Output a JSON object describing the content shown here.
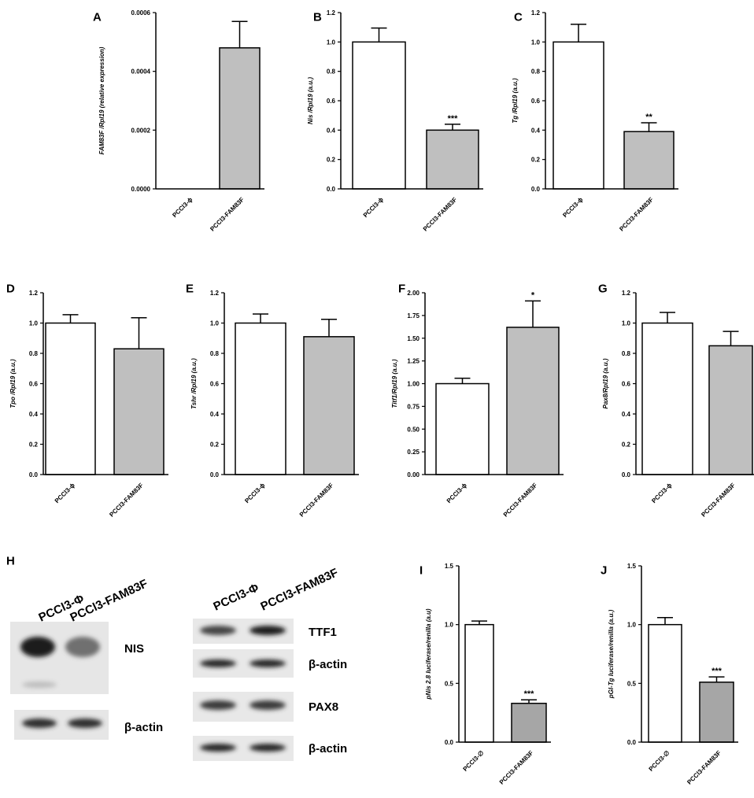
{
  "chart_data": [
    {
      "panel": "A",
      "type": "bar",
      "categories": [
        "PCCl3-ϕ",
        "PCCl3-FAM83F"
      ],
      "values": [
        0.0,
        0.00048
      ],
      "errors": [
        0.0,
        9e-05
      ],
      "significance": [
        "",
        ""
      ],
      "ylabel": "FAM83F /Rpl19 (relative expression)",
      "ylim": [
        0,
        0.0006
      ],
      "yticks": [
        0,
        0.0002,
        0.0004,
        0.0006
      ],
      "ytick_labels": [
        "0.0000",
        "0.0002",
        "0.0004",
        "0.0006"
      ],
      "colors": [
        "#ffffff",
        "#bfbfbf"
      ]
    },
    {
      "panel": "B",
      "type": "bar",
      "categories": [
        "PCCl3-ϕ",
        "PCCl3-FAM83F"
      ],
      "values": [
        1.0,
        0.4
      ],
      "errors": [
        0.095,
        0.04
      ],
      "significance": [
        "",
        "***"
      ],
      "ylabel": "Nis /Rpl19 (a.u.)",
      "ylim": [
        0,
        1.2
      ],
      "yticks": [
        0,
        0.2,
        0.4,
        0.6,
        0.8,
        1.0,
        1.2
      ],
      "ytick_labels": [
        "0.0",
        "0.2",
        "0.4",
        "0.6",
        "0.8",
        "1.0",
        "1.2"
      ],
      "colors": [
        "#ffffff",
        "#bfbfbf"
      ]
    },
    {
      "panel": "C",
      "type": "bar",
      "categories": [
        "PCCl3-ϕ",
        "PCCl3-FAM83F"
      ],
      "values": [
        1.0,
        0.39
      ],
      "errors": [
        0.12,
        0.06
      ],
      "significance": [
        "",
        "**"
      ],
      "ylabel": "Tg /Rpl19 (a.u.)",
      "ylim": [
        0,
        1.2
      ],
      "yticks": [
        0,
        0.2,
        0.4,
        0.6,
        0.8,
        1.0,
        1.2
      ],
      "ytick_labels": [
        "0.0",
        "0.2",
        "0.4",
        "0.6",
        "0.8",
        "1.0",
        "1.2"
      ],
      "colors": [
        "#ffffff",
        "#bfbfbf"
      ]
    },
    {
      "panel": "D",
      "type": "bar",
      "categories": [
        "PCCl3-ϕ",
        "PCCl3-FAM83F"
      ],
      "values": [
        1.0,
        0.83
      ],
      "errors": [
        0.055,
        0.205
      ],
      "significance": [
        "",
        ""
      ],
      "ylabel": "Tpo /Rpl19 (a.u.)",
      "ylim": [
        0,
        1.2
      ],
      "yticks": [
        0,
        0.2,
        0.4,
        0.6,
        0.8,
        1.0,
        1.2
      ],
      "ytick_labels": [
        "0.0",
        "0.2",
        "0.4",
        "0.6",
        "0.8",
        "1.0",
        "1.2"
      ],
      "colors": [
        "#ffffff",
        "#bfbfbf"
      ]
    },
    {
      "panel": "E",
      "type": "bar",
      "categories": [
        "PCCl3-ϕ",
        "PCCl3-FAM83F"
      ],
      "values": [
        1.0,
        0.91
      ],
      "errors": [
        0.06,
        0.115
      ],
      "significance": [
        "",
        ""
      ],
      "ylabel": "Tshr /Rpl19 (a.u.)",
      "ylim": [
        0,
        1.2
      ],
      "yticks": [
        0,
        0.2,
        0.4,
        0.6,
        0.8,
        1.0,
        1.2
      ],
      "ytick_labels": [
        "0.0",
        "0.2",
        "0.4",
        "0.6",
        "0.8",
        "1.0",
        "1.2"
      ],
      "colors": [
        "#ffffff",
        "#bfbfbf"
      ]
    },
    {
      "panel": "F",
      "type": "bar",
      "categories": [
        "PCCl3-ϕ",
        "PCCl3-FAM83F"
      ],
      "values": [
        1.0,
        1.62
      ],
      "errors": [
        0.06,
        0.29
      ],
      "significance": [
        "",
        "*"
      ],
      "ylabel": "Titf1/Rpl19 (a.u.)",
      "ylim": [
        0,
        2.0
      ],
      "yticks": [
        0,
        0.25,
        0.5,
        0.75,
        1.0,
        1.25,
        1.5,
        1.75,
        2.0
      ],
      "ytick_labels": [
        "0.00",
        "0.25",
        "0.50",
        "0.75",
        "1.00",
        "1.25",
        "1.50",
        "1.75",
        "2.00"
      ],
      "colors": [
        "#ffffff",
        "#bfbfbf"
      ]
    },
    {
      "panel": "G",
      "type": "bar",
      "categories": [
        "PCCl3-ϕ",
        "PCCl3-FAM83F"
      ],
      "values": [
        1.0,
        0.85
      ],
      "errors": [
        0.07,
        0.095
      ],
      "significance": [
        "",
        ""
      ],
      "ylabel": "Pax8/Rpl19 (a.u.)",
      "ylim": [
        0,
        1.2
      ],
      "yticks": [
        0,
        0.2,
        0.4,
        0.6,
        0.8,
        1.0,
        1.2
      ],
      "ytick_labels": [
        "0.0",
        "0.2",
        "0.4",
        "0.6",
        "0.8",
        "1.0",
        "1.2"
      ],
      "colors": [
        "#ffffff",
        "#bfbfbf"
      ]
    },
    {
      "panel": "I",
      "type": "bar",
      "categories": [
        "PCCl3-∅",
        "PCCl3-FAM83F"
      ],
      "values": [
        1.0,
        0.33
      ],
      "errors": [
        0.03,
        0.03
      ],
      "significance": [
        "",
        "***"
      ],
      "ylabel": "pNis 2.8 luciferase/renilla (a.u)",
      "ylim": [
        0,
        1.5
      ],
      "yticks": [
        0,
        0.5,
        1.0,
        1.5
      ],
      "ytick_labels": [
        "0.0",
        "0.5",
        "1.0",
        "1.5"
      ],
      "colors": [
        "#ffffff",
        "#a6a6a6"
      ]
    },
    {
      "panel": "J",
      "type": "bar",
      "categories": [
        "PCCl3-∅",
        "PCCl3-FAM83F"
      ],
      "values": [
        1.0,
        0.51
      ],
      "errors": [
        0.06,
        0.045
      ],
      "significance": [
        "",
        "***"
      ],
      "ylabel": "pGl-Tg luciferase/renilla (a.u.)",
      "ylim": [
        0,
        1.5
      ],
      "yticks": [
        0,
        0.5,
        1.0,
        1.5
      ],
      "ytick_labels": [
        "0.0",
        "0.5",
        "1.0",
        "1.5"
      ],
      "colors": [
        "#ffffff",
        "#a6a6a6"
      ]
    }
  ],
  "blots": {
    "panel": "H",
    "left": {
      "lanes": [
        "PCCl3-Φ",
        "PCCl3-FAM83F"
      ],
      "bands": [
        {
          "label": "NIS",
          "intensities": [
            0.95,
            0.55
          ]
        },
        {
          "label": "β-actin",
          "intensities": [
            0.85,
            0.85
          ]
        }
      ]
    },
    "right": {
      "lanes": [
        "PCCl3-Φ",
        "PCCl3-FAM83F"
      ],
      "bands": [
        {
          "label": "TTF1",
          "intensities": [
            0.75,
            0.95
          ]
        },
        {
          "label": "β-actin",
          "intensities": [
            0.9,
            0.9
          ]
        },
        {
          "label": "PAX8",
          "intensities": [
            0.8,
            0.8
          ]
        },
        {
          "label": "β-actin",
          "intensities": [
            0.9,
            0.9
          ]
        }
      ]
    }
  }
}
